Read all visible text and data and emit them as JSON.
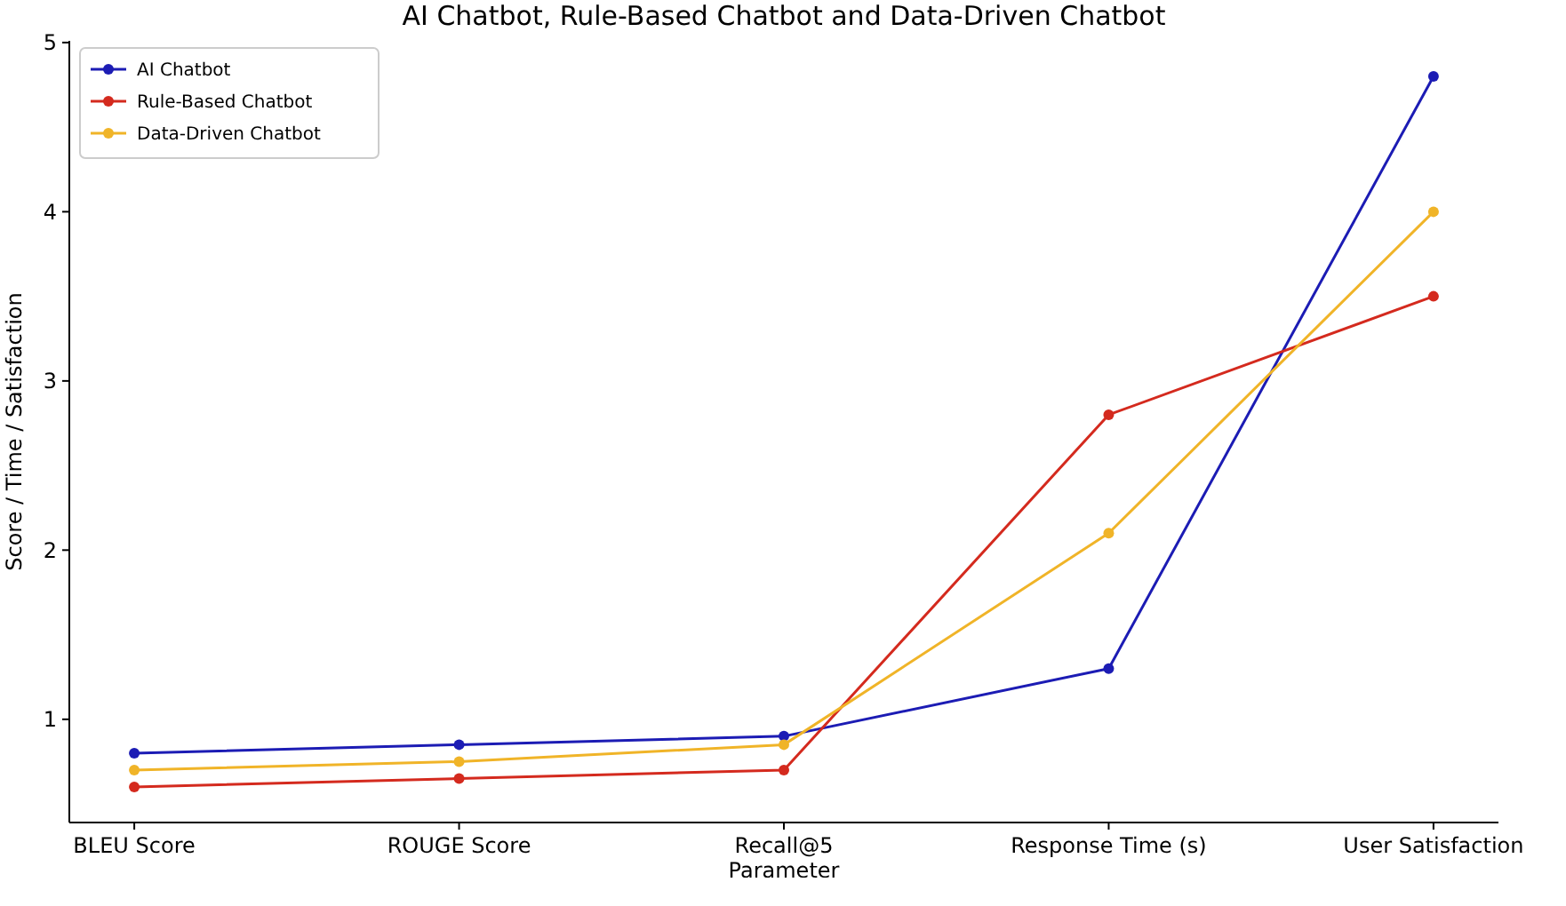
{
  "chart_data": {
    "type": "line",
    "title": "AI Chatbot, Rule-Based Chatbot and Data-Driven Chatbot",
    "xlabel": "Parameter",
    "ylabel": "Score / Time / Satisfaction",
    "categories": [
      "BLEU Score",
      "ROUGE Score",
      "Recall@5",
      "Response Time (s)",
      "User Satisfaction"
    ],
    "series": [
      {
        "name": "AI Chatbot",
        "color": "#1c1cb4",
        "values": [
          0.8,
          0.85,
          0.9,
          1.3,
          4.8
        ]
      },
      {
        "name": "Rule-Based Chatbot",
        "color": "#d42a1e",
        "values": [
          0.6,
          0.65,
          0.7,
          2.8,
          3.5
        ]
      },
      {
        "name": "Data-Driven Chatbot",
        "color": "#f0b428",
        "values": [
          0.7,
          0.75,
          0.85,
          2.1,
          4.0
        ]
      }
    ],
    "ylim": [
      0.39,
      5.01
    ],
    "yticks": [
      1,
      2,
      3,
      4,
      5
    ],
    "grid": false,
    "legend": "top left",
    "marker": "circle",
    "line_style": "solid"
  }
}
